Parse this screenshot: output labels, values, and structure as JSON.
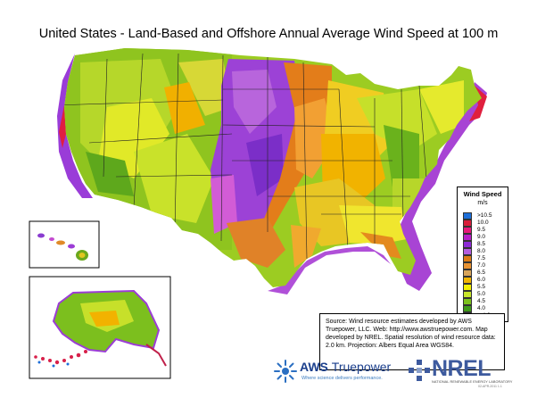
{
  "title": "United States - Land-Based and Offshore Annual Average Wind Speed at 100 m",
  "legend": {
    "title": "Wind Speed",
    "unit": "m/s",
    "items": [
      {
        "label": ">10.5",
        "color": "#1e6fd9"
      },
      {
        "label": "10.0",
        "color": "#d81e3a"
      },
      {
        "label": "9.5",
        "color": "#e8187a"
      },
      {
        "label": "9.0",
        "color": "#b620c8"
      },
      {
        "label": "8.5",
        "color": "#8d2bd6"
      },
      {
        "label": "8.0",
        "color": "#b35cde"
      },
      {
        "label": "7.5",
        "color": "#dd7a14"
      },
      {
        "label": "7.0",
        "color": "#e89232"
      },
      {
        "label": "6.5",
        "color": "#d8a45a"
      },
      {
        "label": "6.0",
        "color": "#f0b400"
      },
      {
        "label": "5.5",
        "color": "#f2f000"
      },
      {
        "label": "5.0",
        "color": "#c8e62a"
      },
      {
        "label": "4.5",
        "color": "#7cc21c"
      },
      {
        "label": "4.0",
        "color": "#3f9a1a"
      },
      {
        "label": "< 4.0",
        "color": "#236b12"
      }
    ]
  },
  "source_note": "Source: Wind resource estimates developed by AWS Truepower, LLC.  Web: http://www.awstruepower.com. Map developed by NREL.  Spatial resolution of wind resource data: 2.0 km. Projection: Albers Equal Area WGS84.",
  "logos": {
    "aws_name_a": "AWS",
    "aws_name_b": "Truepower",
    "aws_tagline": "Where science delivers performance.",
    "nrel_name": "NREL",
    "nrel_subtitle": "NATIONAL RENEWABLE ENERGY LABORATORY",
    "code": "02-APR-2011 1.1"
  }
}
